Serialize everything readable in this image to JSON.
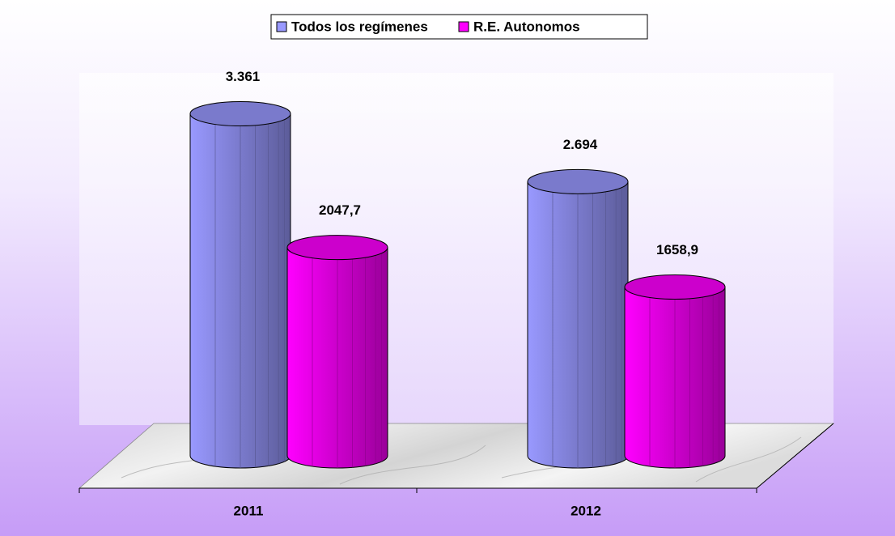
{
  "chart_data": {
    "type": "bar3d",
    "categories": [
      "2011",
      "2012"
    ],
    "series": [
      {
        "name": "Todos los regímenes",
        "color": "#9999ff",
        "values": [
          3361,
          2694
        ],
        "value_labels": [
          "3.361",
          "2.694"
        ]
      },
      {
        "name": "R.E. Autonomos",
        "color": "#ff00ff",
        "values": [
          2047.7,
          1658.9
        ],
        "value_labels": [
          "2047,7",
          "1658,9"
        ]
      }
    ],
    "legend": "top"
  }
}
